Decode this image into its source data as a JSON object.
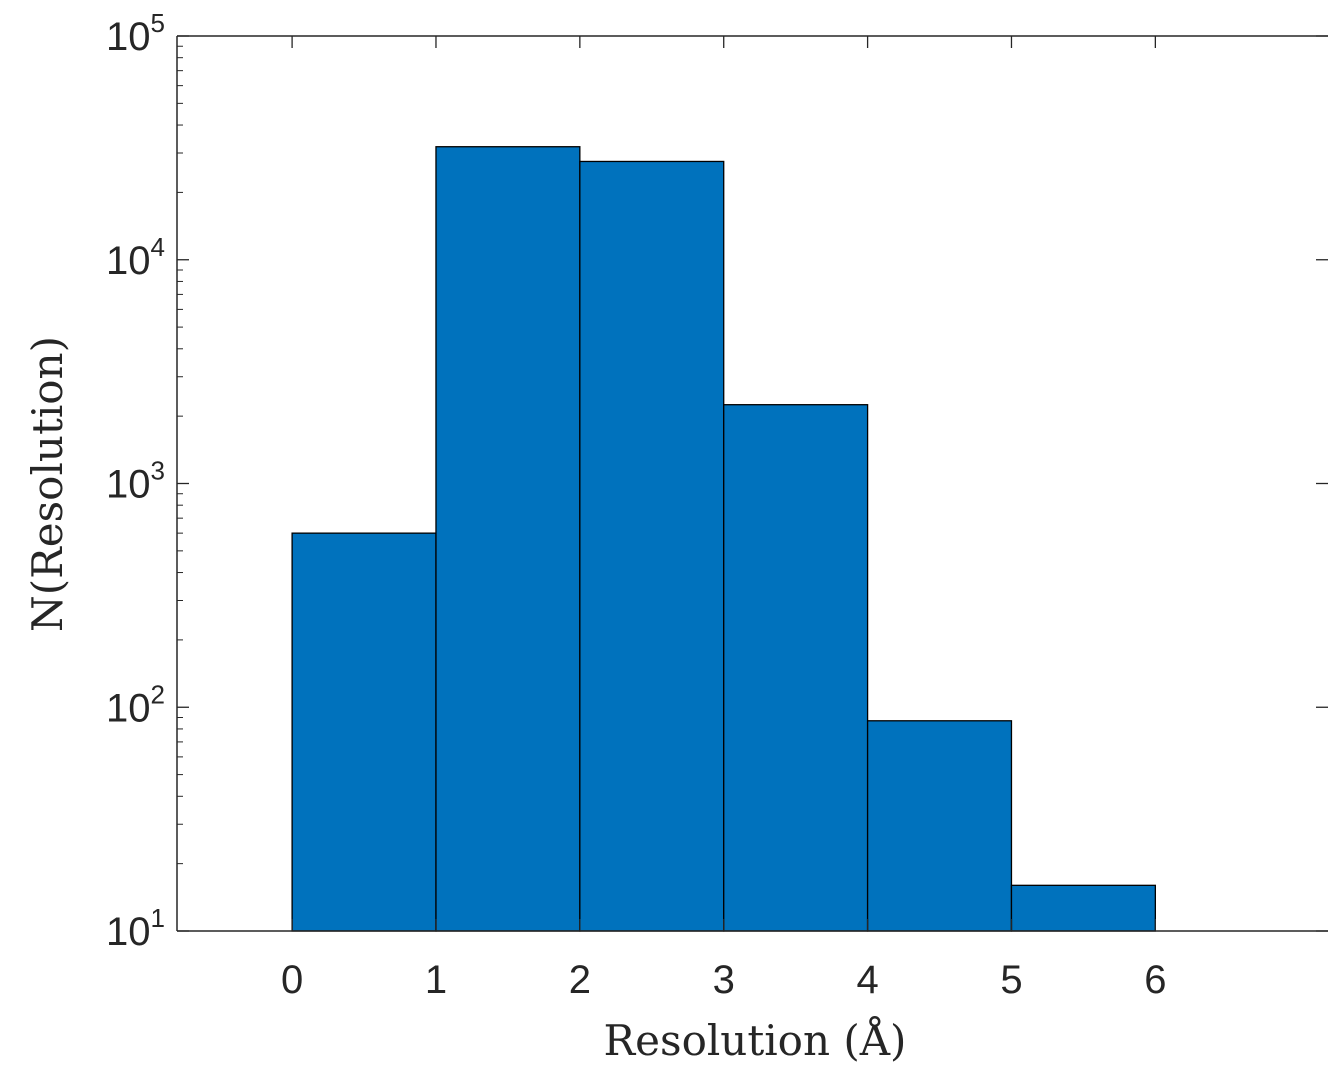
{
  "chart_data": {
    "type": "bar",
    "subtype": "histogram",
    "bin_edges": [
      0,
      1,
      2,
      3,
      4,
      5,
      6
    ],
    "values": [
      600,
      32000,
      27500,
      2250,
      87,
      16
    ],
    "xlabel": "Resolution (Å)",
    "ylabel": "N(Resolution)",
    "xlim": [
      -0.8,
      7.2
    ],
    "ylim": [
      10,
      100000
    ],
    "yscale": "log",
    "x_ticks": [
      0,
      1,
      2,
      3,
      4,
      5,
      6
    ],
    "x_tick_labels": [
      "0",
      "1",
      "2",
      "3",
      "4",
      "5",
      "6"
    ],
    "y_ticks": [
      10,
      100,
      1000,
      10000,
      100000
    ],
    "y_tick_labels": [
      {
        "base": "10",
        "exp": "1"
      },
      {
        "base": "10",
        "exp": "2"
      },
      {
        "base": "10",
        "exp": "3"
      },
      {
        "base": "10",
        "exp": "4"
      },
      {
        "base": "10",
        "exp": "5"
      }
    ],
    "grid": false,
    "legend": "none",
    "colors": {
      "bar_fill": "#0072BD",
      "bar_edge": "#000000",
      "axis": "#262626"
    }
  }
}
